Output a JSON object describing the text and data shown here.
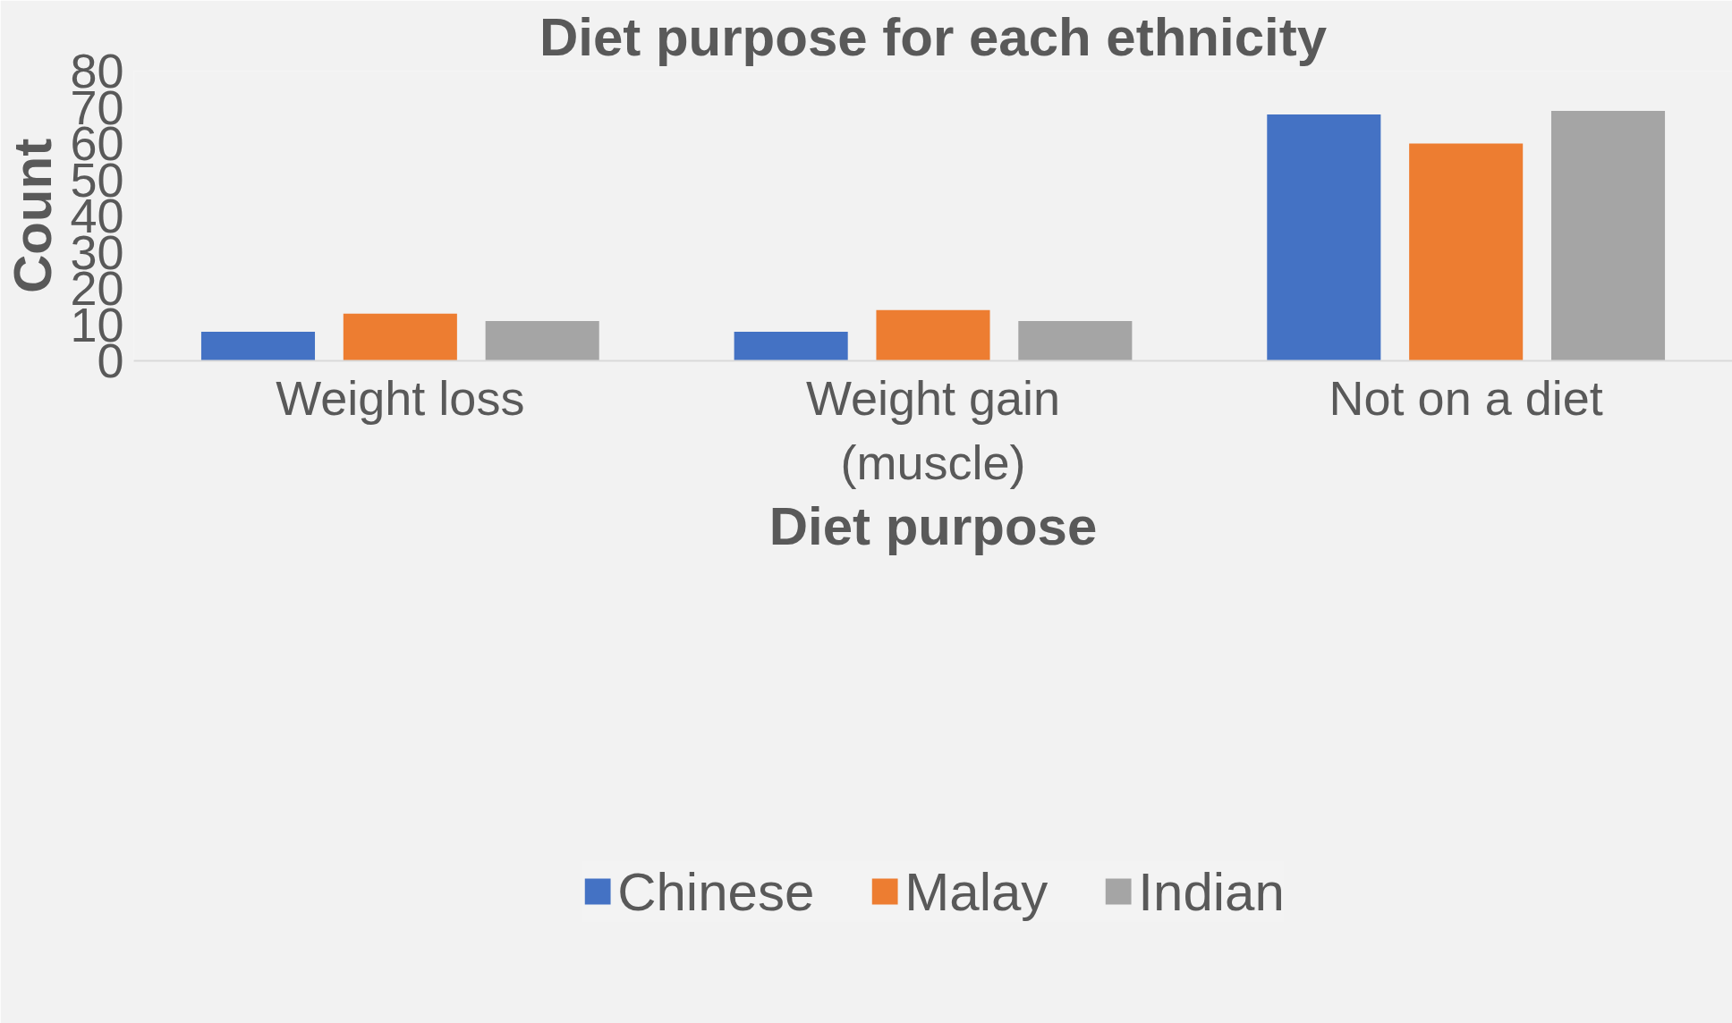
{
  "chart_data": {
    "type": "bar",
    "title": "Diet purpose for each ethnicity",
    "xlabel": "Diet purpose",
    "ylabel": "Count",
    "categories": [
      "Weight loss",
      "Weight gain (muscle)",
      "Not on a diet"
    ],
    "series": [
      {
        "name": "Chinese",
        "color": "#4472c4",
        "values": [
          8,
          8,
          68
        ]
      },
      {
        "name": "Malay",
        "color": "#ed7d31",
        "values": [
          13,
          14,
          60
        ]
      },
      {
        "name": "Indian",
        "color": "#a5a5a5",
        "values": [
          11,
          11,
          69
        ]
      }
    ],
    "ylim": [
      0,
      80
    ],
    "yticks": [
      0,
      10,
      20,
      30,
      40,
      50,
      60,
      70,
      80
    ],
    "grid": false,
    "legend": "bottom"
  }
}
